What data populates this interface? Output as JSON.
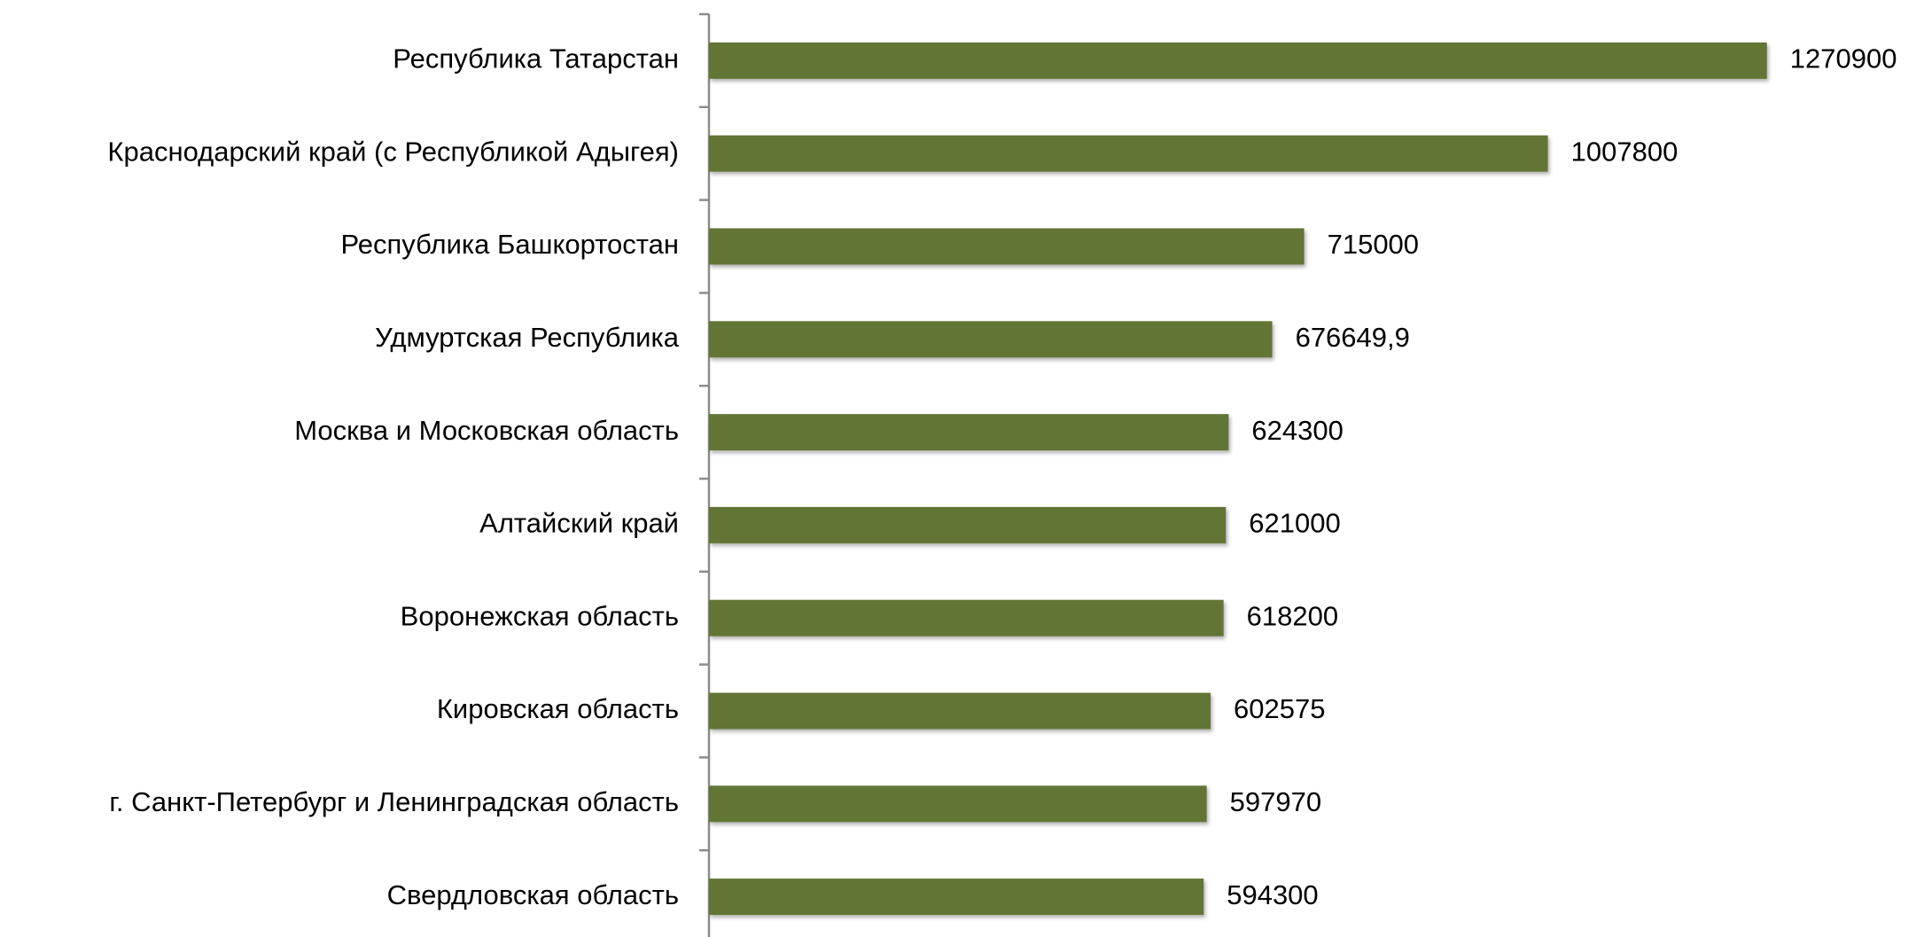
{
  "chart_data": {
    "type": "barh",
    "categories": [
      "Республика Татарстан",
      "Краснодарский край (с Республикой Адыгея)",
      "Республика Башкортостан",
      "Удмуртская Республика",
      "Москва и Московская область",
      "Алтайский край",
      "Воронежская область",
      "Кировская область",
      "г. Санкт-Петербург и Ленинградская область",
      "Свердловская область"
    ],
    "values": [
      1270900,
      1007800,
      715000,
      676649.9,
      624300,
      621000,
      618200,
      602575,
      597970,
      594300
    ],
    "value_labels": [
      "1270900",
      "1007800",
      "715000",
      "676649,9",
      "624300",
      "621000",
      "618200",
      "602575",
      "597970",
      "594300"
    ],
    "color": "#627436",
    "xlim": [
      0,
      1450000
    ]
  }
}
